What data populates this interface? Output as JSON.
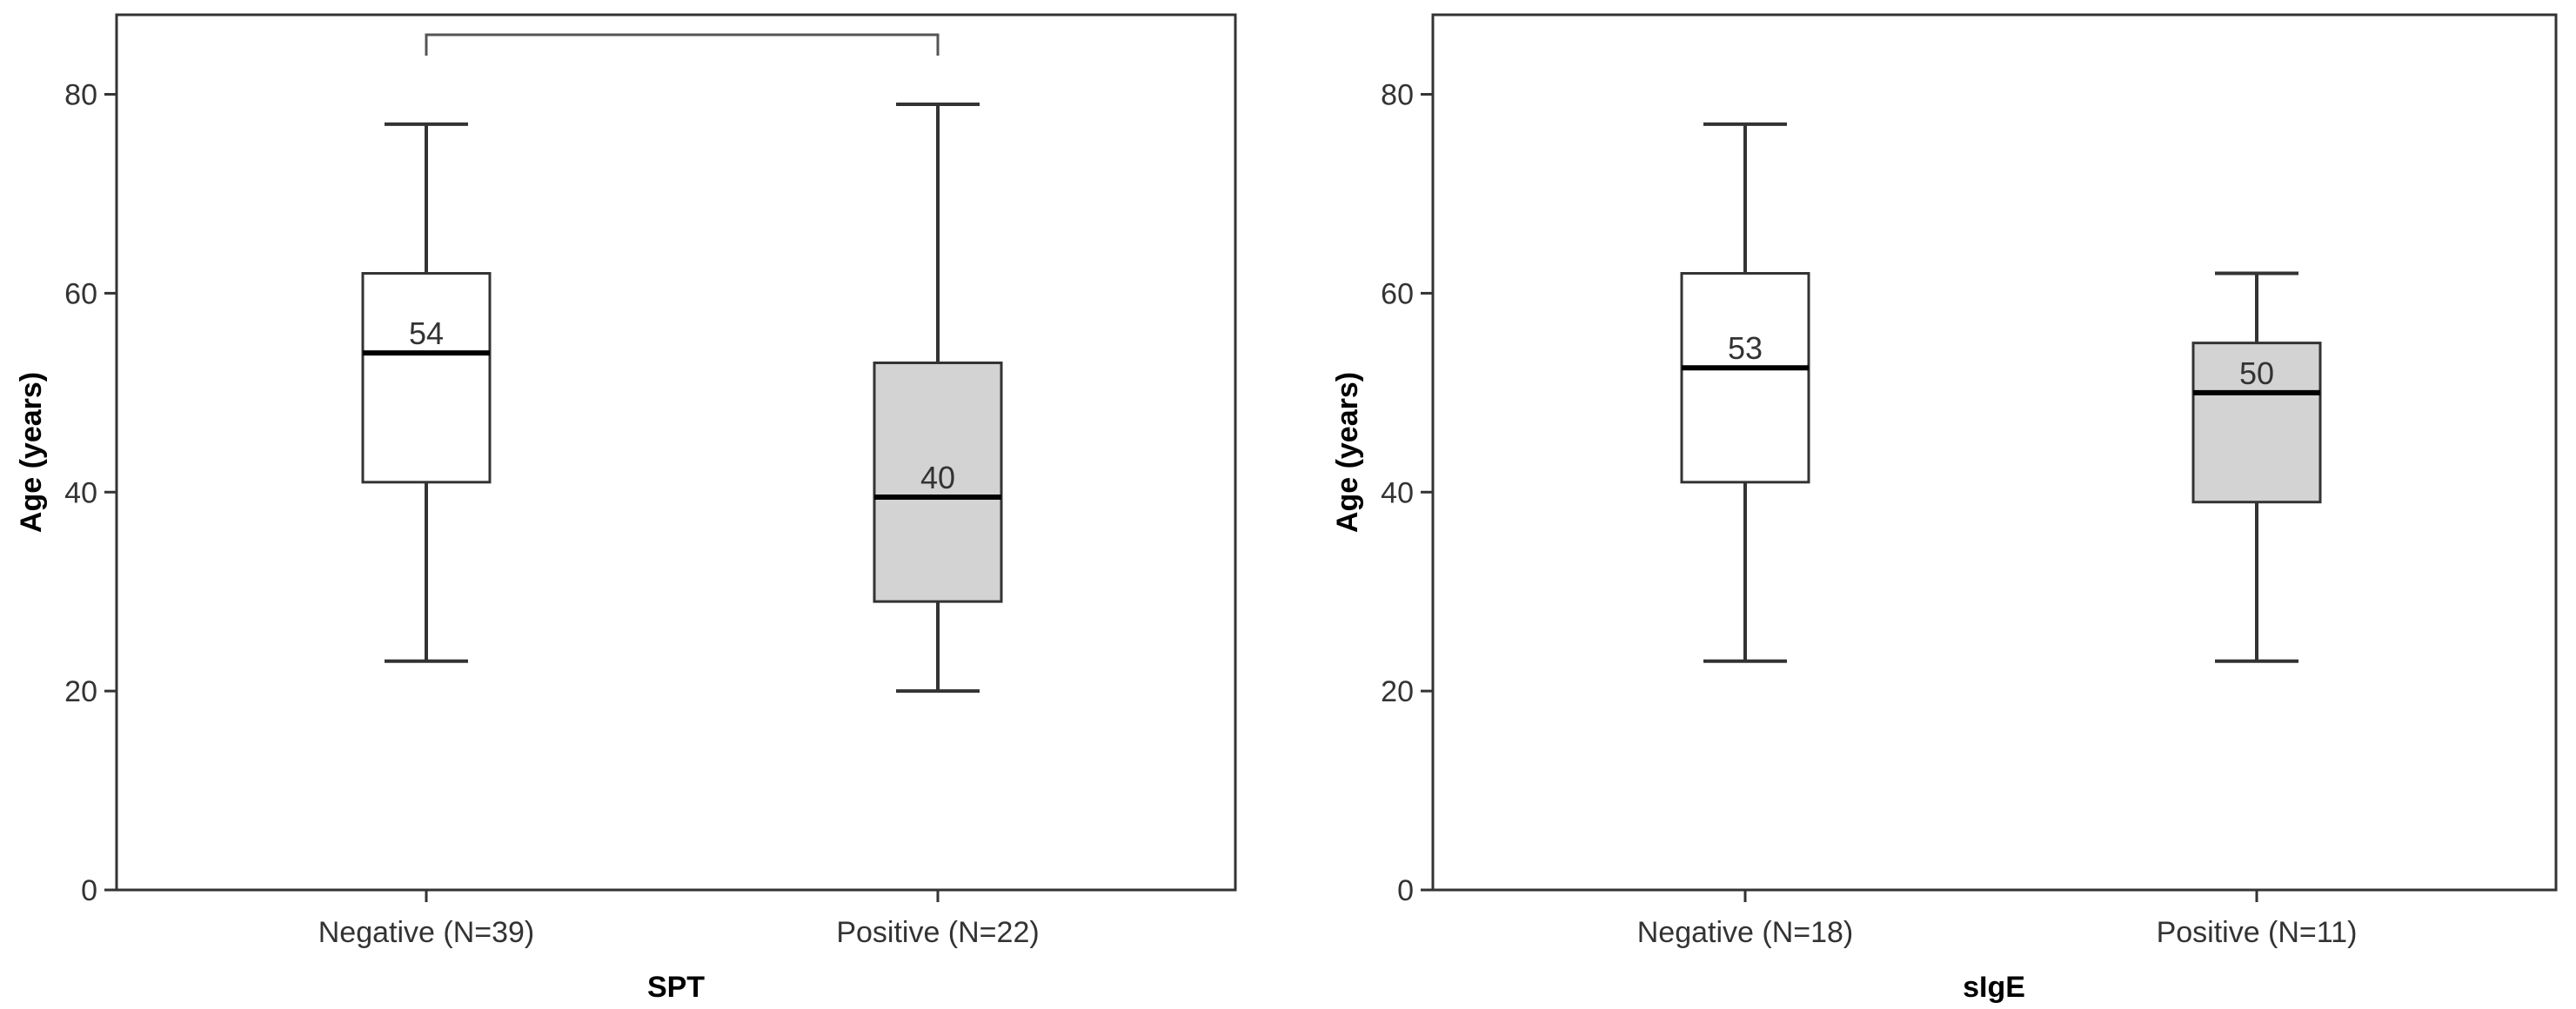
{
  "chart_data": [
    {
      "type": "box",
      "title": "",
      "xlabel": "SPT",
      "ylabel": "Age (years)",
      "ylim": [
        0,
        88
      ],
      "yticks": [
        0,
        20,
        40,
        60,
        80
      ],
      "grid": false,
      "significance_bracket": [
        "Negative (N=39)",
        "Positive (N=22)"
      ],
      "categories": [
        "Negative (N=39)",
        "Positive (N=22)"
      ],
      "boxes": [
        {
          "category": "Negative (N=39)",
          "min": 23,
          "q1": 41,
          "median": 54,
          "q3": 62,
          "max": 77,
          "median_label": "54",
          "fill": "#ffffff"
        },
        {
          "category": "Positive (N=22)",
          "min": 20,
          "q1": 29,
          "median": 39.5,
          "q3": 53,
          "max": 79,
          "median_label": "40",
          "fill": "#d3d3d3"
        }
      ]
    },
    {
      "type": "box",
      "title": "",
      "xlabel": "sIgE",
      "ylabel": "Age (years)",
      "ylim": [
        0,
        88
      ],
      "yticks": [
        0,
        20,
        40,
        60,
        80
      ],
      "grid": false,
      "categories": [
        "Negative (N=18)",
        "Positive (N=11)"
      ],
      "boxes": [
        {
          "category": "Negative (N=18)",
          "min": 23,
          "q1": 41,
          "median": 52.5,
          "q3": 62,
          "max": 77,
          "median_label": "53",
          "fill": "#ffffff"
        },
        {
          "category": "Positive (N=11)",
          "min": 23,
          "q1": 39,
          "median": 50,
          "q3": 55,
          "max": 62,
          "median_label": "50",
          "fill": "#d3d3d3"
        }
      ]
    }
  ]
}
